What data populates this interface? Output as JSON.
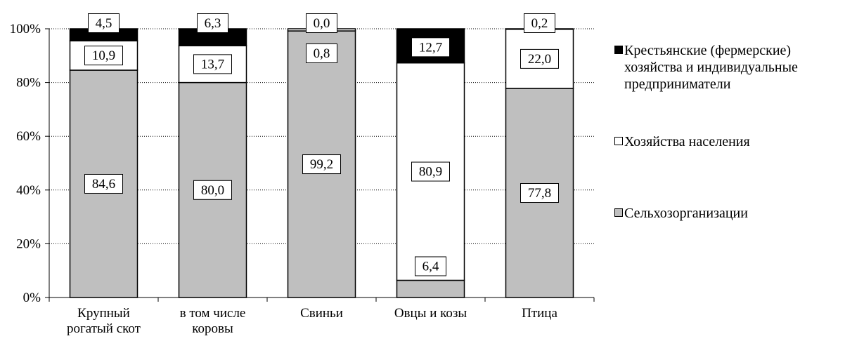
{
  "chart_data": {
    "type": "bar",
    "stacked": true,
    "normalized_percent": true,
    "categories": [
      [
        "Крупный",
        "рогатый скот"
      ],
      [
        "в том числе",
        "коровы"
      ],
      [
        "Свиньи"
      ],
      [
        "Овцы и козы"
      ],
      [
        "Птица"
      ]
    ],
    "series": [
      {
        "name": "Сельхозорганизации",
        "color": "#bfbfbf",
        "values": [
          84.6,
          80.0,
          99.2,
          6.4,
          77.8
        ],
        "labels": [
          "84,6",
          "80,0",
          "99,2",
          "6,4",
          "77,8"
        ]
      },
      {
        "name": "Хозяйства населения",
        "color": "#ffffff",
        "values": [
          10.9,
          13.7,
          0.8,
          80.9,
          22.0
        ],
        "labels": [
          "10,9",
          "13,7",
          "0,8",
          "80,9",
          "22,0"
        ]
      },
      {
        "name": "Крестьянские (фермерские) хозяйства и индивидуальные предприниматели",
        "color": "#000000",
        "values": [
          4.5,
          6.3,
          0.0,
          12.7,
          0.2
        ],
        "labels": [
          "4,5",
          "6,3",
          "0,0",
          "12,7",
          "0,2"
        ]
      }
    ],
    "yticks": [
      "0%",
      "20%",
      "40%",
      "60%",
      "80%",
      "100%"
    ],
    "ylim": [
      0,
      100
    ],
    "grid": "horizontal-dashed",
    "legend_position": "right",
    "legend_order": [
      2,
      1,
      0
    ],
    "title": "",
    "xlabel": "",
    "ylabel": ""
  }
}
